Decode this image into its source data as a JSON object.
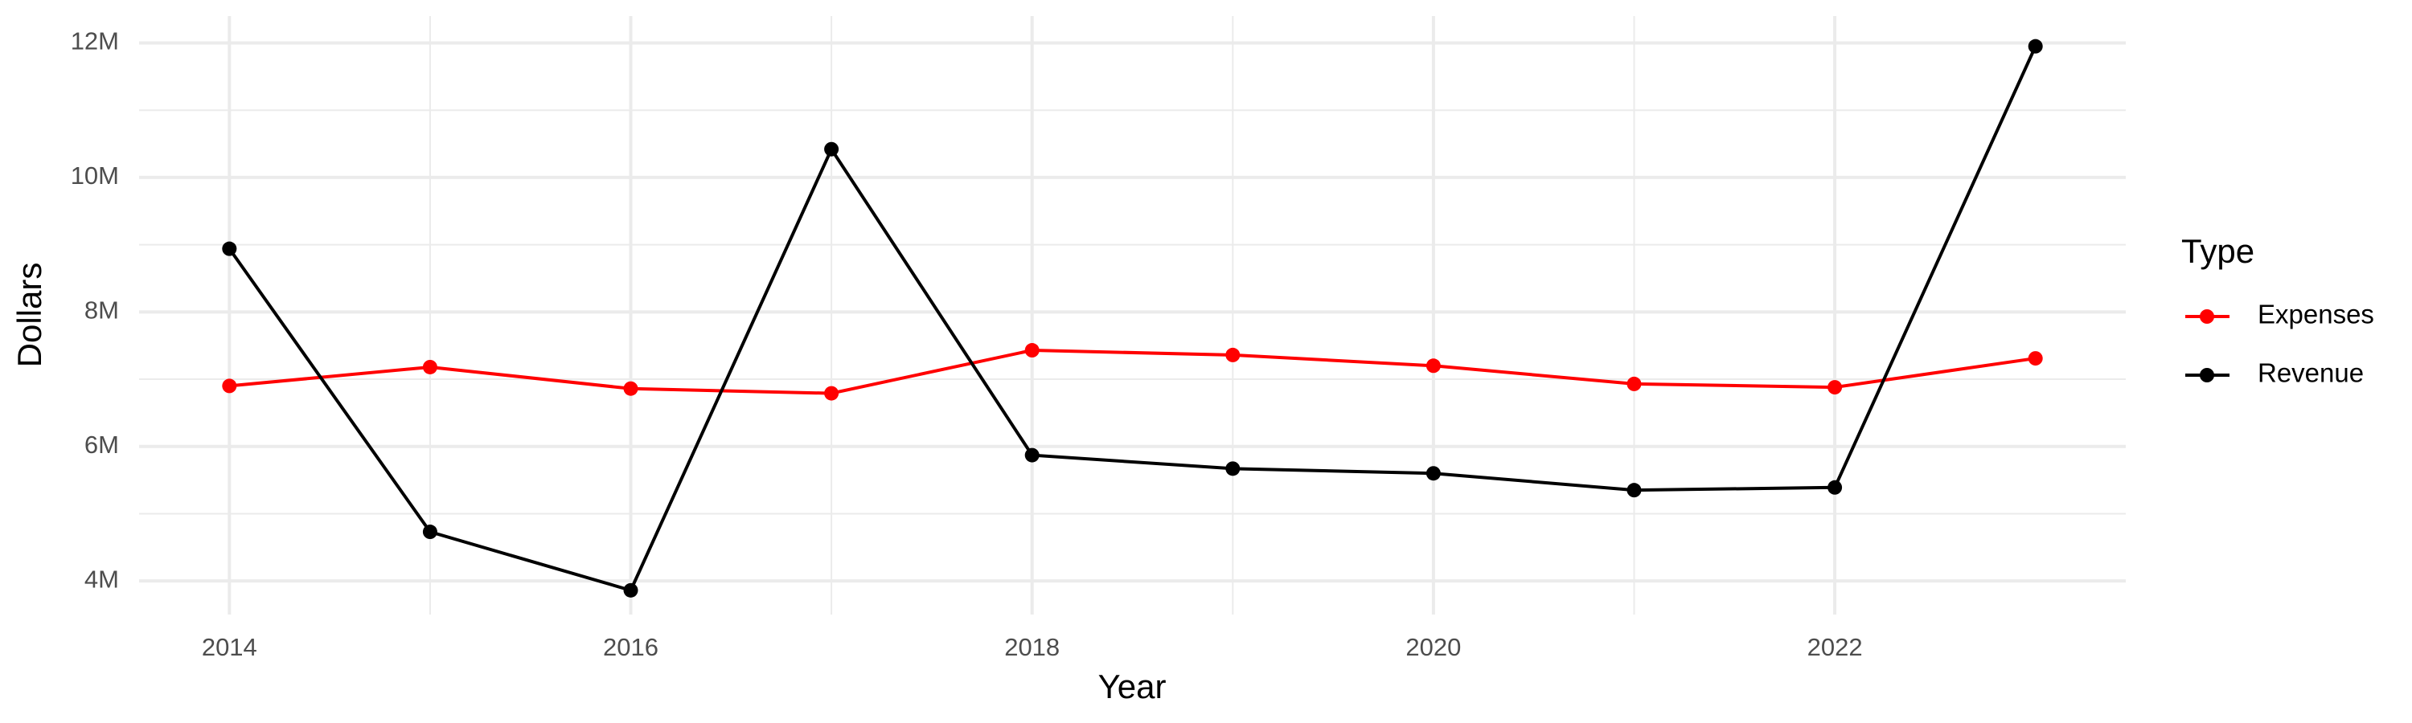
{
  "chart_data": {
    "type": "line",
    "x_label": "Year",
    "y_label": "Dollars",
    "legend_title": "Type",
    "legend": "right",
    "grid": true,
    "x": [
      2014,
      2015,
      2016,
      2017,
      2018,
      2019,
      2020,
      2021,
      2022,
      2023
    ],
    "series": [
      {
        "name": "Expenses",
        "color": "#ff0000",
        "values": [
          6900000,
          7180000,
          6860000,
          6790000,
          7430000,
          7360000,
          7200000,
          6930000,
          6880000,
          7310000
        ]
      },
      {
        "name": "Revenue",
        "color": "#000000",
        "values": [
          8940000,
          4730000,
          3860000,
          10420000,
          5870000,
          5670000,
          5600000,
          5350000,
          5390000,
          11950000
        ]
      }
    ],
    "xlim": [
      2013.55,
      2023.45
    ],
    "xticks": [
      2014,
      2016,
      2018,
      2020,
      2022
    ],
    "ylim": [
      3500000,
      12400000
    ],
    "yticks": [
      {
        "value": 4000000,
        "label": "4M"
      },
      {
        "value": 6000000,
        "label": "6M"
      },
      {
        "value": 8000000,
        "label": "8M"
      },
      {
        "value": 10000000,
        "label": "10M"
      },
      {
        "value": 12000000,
        "label": "12M"
      }
    ]
  }
}
